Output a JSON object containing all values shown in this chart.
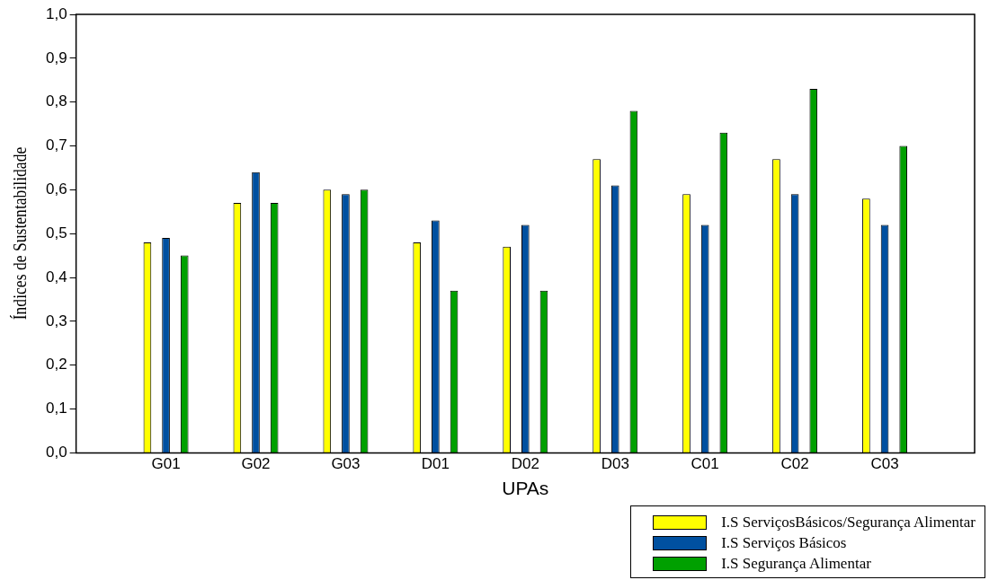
{
  "chart_data": {
    "type": "bar",
    "xlabel": "UPAs",
    "ylabel": "Índices de Sustentabilidade",
    "categories": [
      "G01",
      "G02",
      "G03",
      "D01",
      "D02",
      "D03",
      "C01",
      "C02",
      "C03"
    ],
    "series": [
      {
        "name": "I.S ServiçosBásicos/Segurança Alimentar",
        "color": "#ffff00",
        "values": [
          0.48,
          0.57,
          0.6,
          0.48,
          0.47,
          0.67,
          0.59,
          0.67,
          0.58
        ]
      },
      {
        "name": "I.S Serviços Básicos",
        "color": "#0050a0",
        "values": [
          0.49,
          0.64,
          0.59,
          0.53,
          0.52,
          0.61,
          0.52,
          0.59,
          0.52
        ]
      },
      {
        "name": "I.S Segurança Alimentar",
        "color": "#00a000",
        "values": [
          0.45,
          0.57,
          0.6,
          0.37,
          0.37,
          0.78,
          0.73,
          0.83,
          0.7
        ]
      }
    ],
    "ylim": [
      0,
      1
    ],
    "yticks": [
      {
        "value": 0,
        "label": "0,0"
      },
      {
        "value": 0.1,
        "label": "0,1"
      },
      {
        "value": 0.2,
        "label": "0,2"
      },
      {
        "value": 0.3,
        "label": "0,3"
      },
      {
        "value": 0.4,
        "label": "0,4"
      },
      {
        "value": 0.5,
        "label": "0,5"
      },
      {
        "value": 0.6,
        "label": "0,6"
      },
      {
        "value": 0.7,
        "label": "0,7"
      },
      {
        "value": 0.8,
        "label": "0,8"
      },
      {
        "value": 0.9,
        "label": "0,9"
      },
      {
        "value": 1,
        "label": "1,0"
      }
    ],
    "grid": false,
    "legend": "bottom right"
  }
}
